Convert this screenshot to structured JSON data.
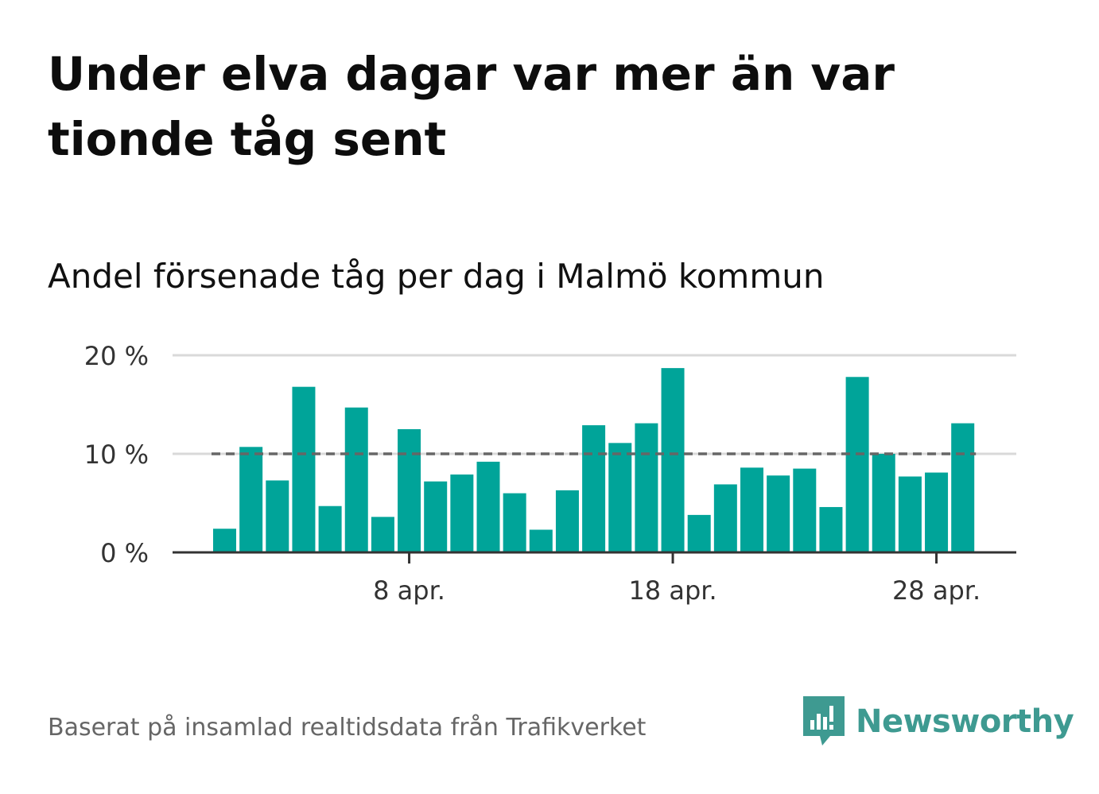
{
  "title": "Under elva dagar var mer än var tionde tåg sent",
  "subtitle": "Andel försenade tåg per dag i Malmö kommun",
  "footer": {
    "source": "Baserat på insamlad realtidsdata från Trafikverket",
    "brand": "Newsworthy",
    "brand_icon": "bar-chart-speech-bubble-icon"
  },
  "colors": {
    "bar": "#00a499",
    "grid": "#d9d9d9",
    "axis": "#333333",
    "reference_line": "#666666",
    "brand": "#3e9a91"
  },
  "chart_data": {
    "type": "bar",
    "title": "Andel försenade tåg per dag i Malmö kommun",
    "xlabel": "",
    "ylabel": "",
    "x": [
      "1 apr.",
      "2 apr.",
      "3 apr.",
      "4 apr.",
      "5 apr.",
      "6 apr.",
      "7 apr.",
      "8 apr.",
      "9 apr.",
      "10 apr.",
      "11 apr.",
      "12 apr.",
      "13 apr.",
      "14 apr.",
      "15 apr.",
      "16 apr.",
      "17 apr.",
      "18 apr.",
      "19 apr.",
      "20 apr.",
      "21 apr.",
      "22 apr.",
      "23 apr.",
      "24 apr.",
      "25 apr.",
      "26 apr.",
      "27 apr.",
      "28 apr.",
      "29 apr."
    ],
    "values": [
      2.4,
      10.7,
      7.3,
      16.8,
      4.7,
      14.7,
      3.6,
      12.5,
      7.2,
      7.9,
      9.2,
      6.0,
      2.3,
      6.3,
      12.9,
      11.1,
      13.1,
      18.7,
      3.8,
      6.9,
      8.6,
      7.8,
      8.5,
      4.6,
      17.8,
      10.0,
      7.7,
      8.1,
      13.1
    ],
    "ylim": [
      0,
      20
    ],
    "yticks": [
      0,
      10,
      20
    ],
    "ytick_labels": [
      "0 %",
      "10 %",
      "20 %"
    ],
    "xticks": [
      "8 apr.",
      "18 apr.",
      "28 apr."
    ],
    "reference_line": 10,
    "grid": true,
    "legend": "none"
  }
}
